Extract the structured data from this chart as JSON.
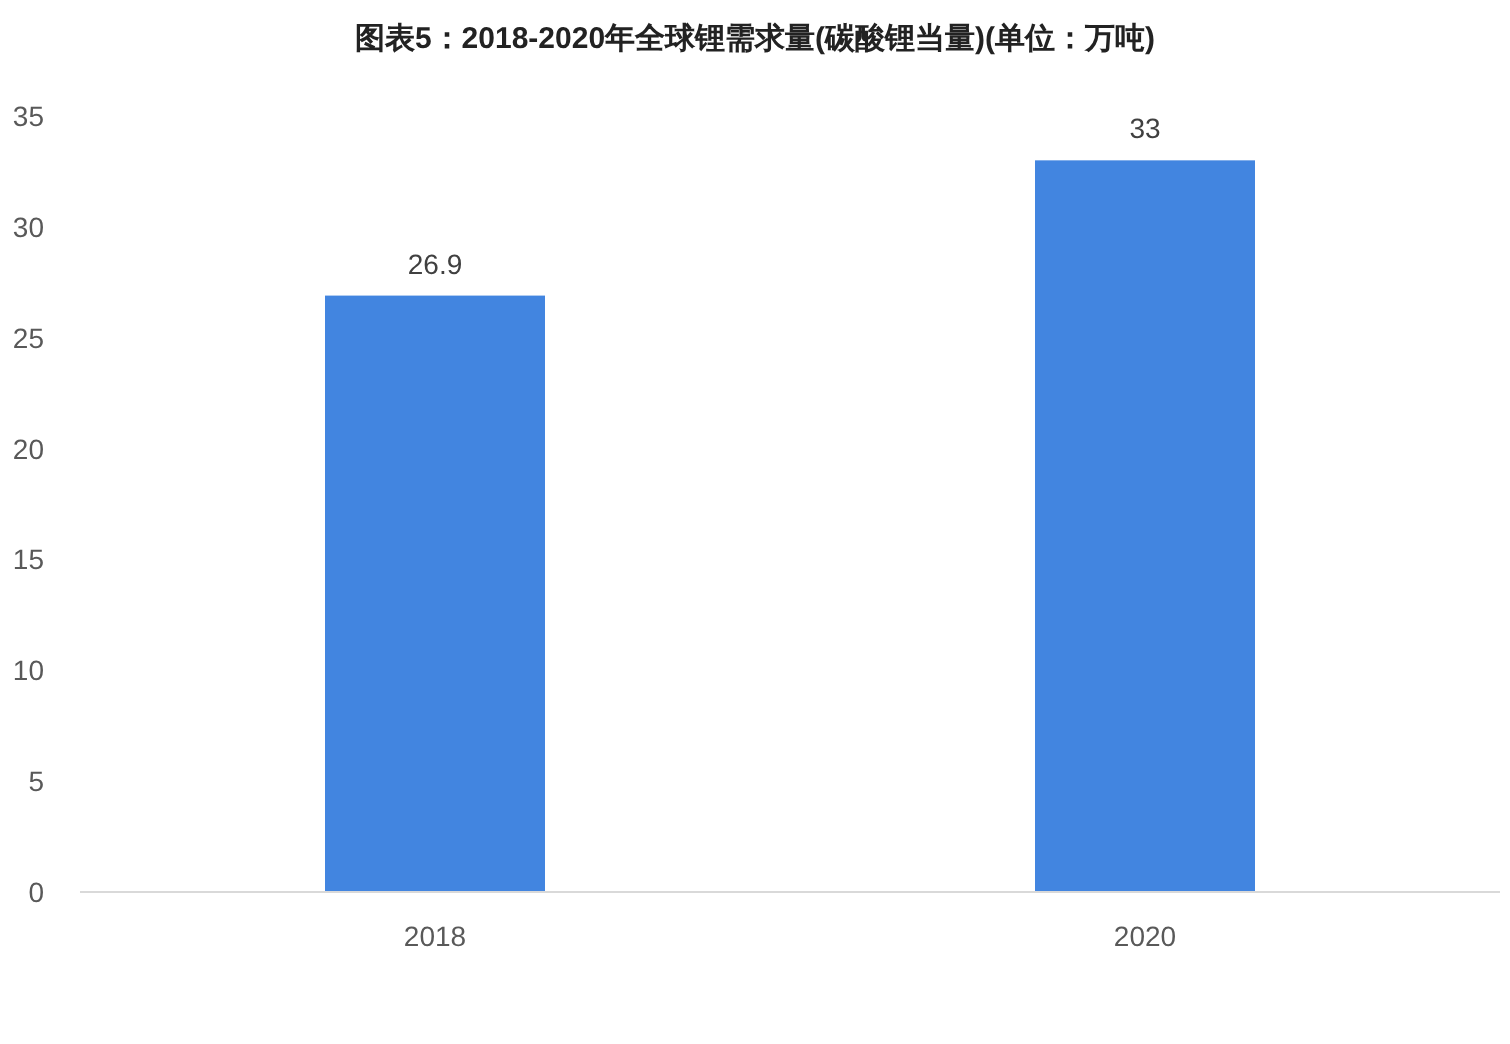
{
  "chart_data": {
    "type": "bar",
    "title": "图表5：2018-2020年全球锂需求量(碳酸锂当量)(单位：万吨)",
    "categories": [
      "2018",
      "2020"
    ],
    "values": [
      26.9,
      33
    ],
    "color": "#4285e0",
    "ylim": [
      0,
      35
    ],
    "yticks": [
      0,
      5,
      10,
      15,
      20,
      25,
      30,
      35
    ],
    "data_labels": true
  }
}
